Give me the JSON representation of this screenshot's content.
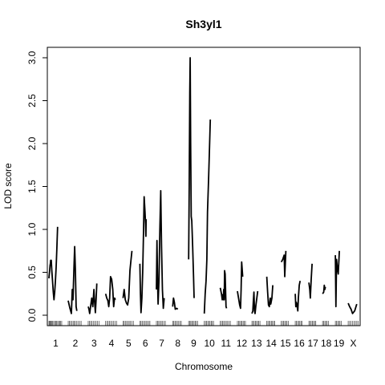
{
  "chart_data": {
    "type": "line",
    "title": "Sh3yl1",
    "xlabel": "Chromosome",
    "ylabel": "LOD score",
    "ylim": [
      0,
      3.2
    ],
    "yticks": [
      0.0,
      0.5,
      1.0,
      1.5,
      2.0,
      2.5,
      3.0
    ],
    "ytick_labels": [
      "0.0",
      "0.5",
      "1.0",
      "1.5",
      "2.0",
      "2.5",
      "3.0"
    ],
    "grid": false,
    "legend": "none",
    "chromosomes": [
      {
        "label": "1",
        "length": 95,
        "markers": [
          0,
          5,
          9,
          14,
          20,
          26,
          33,
          40,
          47,
          54,
          61,
          68,
          75,
          82,
          89
        ],
        "lod": [
          [
            0,
            0.43
          ],
          [
            5,
            0.52
          ],
          [
            8,
            0.58
          ],
          [
            10,
            0.6
          ],
          [
            12,
            0.64
          ],
          [
            16,
            0.64
          ],
          [
            20,
            0.52
          ],
          [
            25,
            0.4
          ],
          [
            30,
            0.27
          ],
          [
            35,
            0.18
          ],
          [
            40,
            0.27
          ],
          [
            45,
            0.4
          ],
          [
            50,
            0.56
          ],
          [
            55,
            0.78
          ],
          [
            60,
            1.03
          ]
        ]
      },
      {
        "label": "2",
        "length": 100,
        "markers": [
          0,
          8,
          16,
          25,
          34,
          42,
          50,
          60,
          70,
          80,
          90
        ],
        "lod": [
          [
            0,
            0.17
          ],
          [
            12,
            0.08
          ],
          [
            22,
            0.02
          ],
          [
            28,
            0.3
          ],
          [
            33,
            0.18
          ],
          [
            40,
            0.55
          ],
          [
            45,
            0.8
          ],
          [
            50,
            0.52
          ],
          [
            55,
            0.1
          ],
          [
            60,
            0.05
          ]
        ]
      },
      {
        "label": "3",
        "length": 82,
        "markers": [
          0,
          8,
          17,
          26,
          35,
          45,
          55,
          65,
          75
        ],
        "lod": [
          [
            0,
            0.1
          ],
          [
            5,
            0.07
          ],
          [
            10,
            0.02
          ],
          [
            18,
            0.12
          ],
          [
            25,
            0.2
          ],
          [
            32,
            0.1
          ],
          [
            40,
            0.3
          ],
          [
            45,
            0.15
          ],
          [
            50,
            0.03
          ],
          [
            55,
            0.18
          ],
          [
            60,
            0.37
          ]
        ]
      },
      {
        "label": "4",
        "length": 82,
        "markers": [
          0,
          9,
          18,
          27,
          36,
          46,
          56,
          66,
          76
        ],
        "lod": [
          [
            0,
            0.25
          ],
          [
            8,
            0.2
          ],
          [
            16,
            0.17
          ],
          [
            22,
            0.1
          ],
          [
            28,
            0.2
          ],
          [
            34,
            0.45
          ],
          [
            42,
            0.42
          ],
          [
            50,
            0.3
          ],
          [
            56,
            0.1
          ],
          [
            62,
            0.2
          ],
          [
            68,
            0.18
          ]
        ]
      },
      {
        "label": "5",
        "length": 78,
        "markers": [
          0,
          8,
          16,
          25,
          34,
          43,
          52,
          62,
          72
        ],
        "lod": [
          [
            0,
            0.2
          ],
          [
            8,
            0.3
          ],
          [
            16,
            0.18
          ],
          [
            24,
            0.14
          ],
          [
            32,
            0.12
          ],
          [
            40,
            0.2
          ],
          [
            48,
            0.52
          ],
          [
            56,
            0.65
          ],
          [
            62,
            0.75
          ]
        ]
      },
      {
        "label": "6",
        "length": 76,
        "markers": [
          0,
          8,
          16,
          25,
          34,
          43,
          52,
          61,
          70
        ],
        "lod": [
          [
            0,
            0.6
          ],
          [
            4,
            0.25
          ],
          [
            8,
            0.03
          ],
          [
            14,
            0.2
          ],
          [
            20,
            0.5
          ],
          [
            26,
            1.0
          ],
          [
            30,
            1.38
          ],
          [
            36,
            1.2
          ],
          [
            40,
            1.06
          ],
          [
            42,
            0.92
          ],
          [
            44,
            1.12
          ]
        ]
      },
      {
        "label": "7",
        "length": 74,
        "markers": [
          0,
          8,
          16,
          25,
          34,
          43,
          52,
          62
        ],
        "lod": [
          [
            0,
            0.3
          ],
          [
            4,
            0.87
          ],
          [
            8,
            0.42
          ],
          [
            12,
            0.13
          ],
          [
            18,
            0.4
          ],
          [
            24,
            1.0
          ],
          [
            30,
            1.45
          ],
          [
            36,
            0.8
          ],
          [
            42,
            0.3
          ],
          [
            48,
            0.08
          ],
          [
            54,
            0.2
          ]
        ]
      },
      {
        "label": "8",
        "length": 72,
        "markers": [
          0,
          8,
          16,
          24,
          33,
          42,
          51,
          60
        ],
        "lod": [
          [
            0,
            0.1
          ],
          [
            6,
            0.2
          ],
          [
            12,
            0.15
          ],
          [
            18,
            0.07
          ],
          [
            28,
            0.08
          ],
          [
            36,
            0.07
          ]
        ]
      },
      {
        "label": "9",
        "length": 70,
        "markers": [
          0,
          8,
          15,
          22,
          30,
          38,
          46,
          54,
          62
        ],
        "lod": [
          [
            0,
            0.65
          ],
          [
            4,
            1.5
          ],
          [
            8,
            2.6
          ],
          [
            11,
            3.0
          ],
          [
            14,
            2.0
          ],
          [
            18,
            1.15
          ],
          [
            22,
            1.1
          ],
          [
            28,
            0.8
          ],
          [
            34,
            0.45
          ],
          [
            38,
            0.2
          ]
        ]
      },
      {
        "label": "10",
        "length": 72,
        "markers": [
          0,
          8,
          16,
          24,
          32,
          40,
          48,
          56,
          64
        ],
        "lod": [
          [
            0,
            0.02
          ],
          [
            6,
            0.25
          ],
          [
            12,
            0.4
          ],
          [
            18,
            0.65
          ],
          [
            22,
            1.2
          ],
          [
            30,
            1.6
          ],
          [
            36,
            1.95
          ],
          [
            42,
            2.28
          ]
        ]
      },
      {
        "label": "11",
        "length": 80,
        "markers": [
          0,
          8,
          16,
          24,
          33,
          42,
          51,
          60,
          70
        ],
        "lod": [
          [
            0,
            0.32
          ],
          [
            8,
            0.25
          ],
          [
            14,
            0.18
          ],
          [
            18,
            0.24
          ],
          [
            22,
            0.18
          ],
          [
            24,
            0.3
          ],
          [
            28,
            0.18
          ],
          [
            30,
            0.52
          ],
          [
            34,
            0.48
          ],
          [
            40,
            0.1
          ],
          [
            44,
            0.08
          ]
        ]
      },
      {
        "label": "12",
        "length": 62,
        "markers": [
          0,
          8,
          16,
          24,
          32,
          40,
          48,
          56
        ],
        "lod": [
          [
            0,
            0.28
          ],
          [
            8,
            0.2
          ],
          [
            16,
            0.12
          ],
          [
            22,
            0.08
          ],
          [
            26,
            0.3
          ],
          [
            30,
            0.62
          ],
          [
            35,
            0.5
          ],
          [
            37,
            0.45
          ]
        ]
      },
      {
        "label": "13",
        "length": 64,
        "markers": [
          0,
          8,
          16,
          24,
          32,
          40,
          48,
          56
        ],
        "lod": [
          [
            0,
            0.02
          ],
          [
            6,
            0.05
          ],
          [
            10,
            0.17
          ],
          [
            14,
            0.27
          ],
          [
            18,
            0.05
          ],
          [
            22,
            0.02
          ],
          [
            28,
            0.12
          ],
          [
            34,
            0.2
          ],
          [
            40,
            0.28
          ]
        ]
      },
      {
        "label": "14",
        "length": 62,
        "markers": [
          0,
          8,
          16,
          24,
          32,
          40,
          48,
          56
        ],
        "lod": [
          [
            0,
            0.45
          ],
          [
            6,
            0.28
          ],
          [
            12,
            0.12
          ],
          [
            18,
            0.1
          ],
          [
            24,
            0.2
          ],
          [
            28,
            0.13
          ],
          [
            36,
            0.2
          ],
          [
            42,
            0.35
          ]
        ]
      },
      {
        "label": "15",
        "length": 58,
        "markers": [
          0,
          8,
          16,
          24,
          32,
          40,
          50
        ],
        "lod": [
          [
            0,
            0.62
          ],
          [
            10,
            0.65
          ],
          [
            20,
            0.7
          ],
          [
            24,
            0.45
          ],
          [
            28,
            0.6
          ],
          [
            32,
            0.75
          ]
        ]
      },
      {
        "label": "16",
        "length": 56,
        "markers": [
          0,
          8,
          16,
          24,
          32,
          40,
          48
        ],
        "lod": [
          [
            0,
            0.25
          ],
          [
            4,
            0.1
          ],
          [
            8,
            0.15
          ],
          [
            12,
            0.12
          ],
          [
            18,
            0.05
          ],
          [
            22,
            0.2
          ],
          [
            28,
            0.35
          ],
          [
            34,
            0.4
          ]
        ]
      },
      {
        "label": "17",
        "length": 56,
        "markers": [
          0,
          8,
          16,
          24,
          32,
          40,
          48
        ],
        "lod": [
          [
            0,
            0.38
          ],
          [
            6,
            0.3
          ],
          [
            10,
            0.2
          ],
          [
            16,
            0.42
          ],
          [
            22,
            0.6
          ]
        ]
      },
      {
        "label": "18",
        "length": 50,
        "markers": [
          0,
          8,
          16,
          24,
          32,
          42
        ],
        "lod": [
          [
            0,
            0.25
          ],
          [
            8,
            0.27
          ],
          [
            12,
            0.35
          ],
          [
            16,
            0.3
          ],
          [
            20,
            0.33
          ]
        ]
      },
      {
        "label": "19",
        "length": 50,
        "markers": [
          0,
          8,
          16,
          24,
          32,
          42
        ],
        "lod": [
          [
            0,
            0.7
          ],
          [
            4,
            0.1
          ],
          [
            8,
            0.65
          ],
          [
            14,
            0.55
          ],
          [
            20,
            0.48
          ],
          [
            28,
            0.75
          ]
        ]
      },
      {
        "label": "X",
        "length": 72,
        "markers": [
          0,
          10,
          20,
          30,
          40,
          50,
          60,
          70
        ],
        "lod": [
          [
            0,
            0.14
          ],
          [
            10,
            0.1
          ],
          [
            20,
            0.07
          ],
          [
            30,
            0.02
          ],
          [
            45,
            0.05
          ],
          [
            60,
            0.13
          ]
        ]
      }
    ]
  }
}
